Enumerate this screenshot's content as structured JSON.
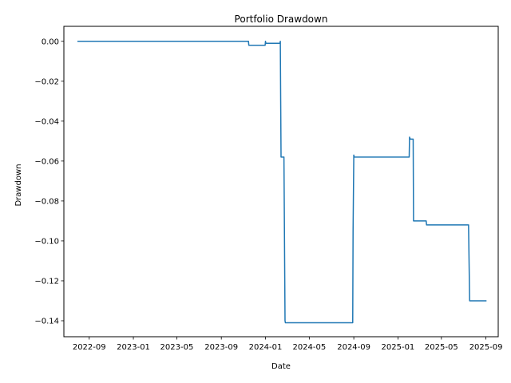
{
  "chart_data": {
    "type": "line",
    "title": "Portfolio Drawdown",
    "xlabel": "Date",
    "ylabel": "Drawdown",
    "xlim": [
      "2022-06-23",
      "2025-10-05"
    ],
    "ylim": [
      -0.148,
      0.0075
    ],
    "grid": false,
    "legend": "none",
    "x_ticks": [
      "2022-09-01",
      "2023-01-01",
      "2023-05-01",
      "2023-09-01",
      "2024-01-01",
      "2024-05-01",
      "2024-09-01",
      "2025-01-01",
      "2025-05-01",
      "2025-09-01"
    ],
    "x_tick_labels": [
      "2022-09",
      "2023-01",
      "2023-05",
      "2023-09",
      "2024-01",
      "2024-05",
      "2024-09",
      "2025-01",
      "2025-05",
      "2025-09"
    ],
    "y_ticks": [
      0.0,
      -0.02,
      -0.04,
      -0.06,
      -0.08,
      -0.1,
      -0.12,
      -0.14
    ],
    "y_tick_labels": [
      "0.00",
      "−0.02",
      "−0.04",
      "−0.06",
      "−0.08",
      "−0.10",
      "−0.12",
      "−0.14"
    ],
    "series": [
      {
        "color": "#1f77b4",
        "x": [
          "2022-08-01",
          "2023-11-15",
          "2023-11-16",
          "2023-12-31",
          "2024-01-01",
          "2024-01-02",
          "2024-02-10",
          "2024-02-11",
          "2024-02-12",
          "2024-02-13",
          "2024-02-14",
          "2024-02-15",
          "2024-02-16",
          "2024-02-17",
          "2024-02-18",
          "2024-02-19",
          "2024-02-20",
          "2024-02-21",
          "2024-02-24",
          "2024-02-25",
          "2024-08-29",
          "2024-08-30",
          "2024-09-01",
          "2024-09-02",
          "2025-02-01",
          "2025-02-02",
          "2025-02-04",
          "2025-02-05",
          "2025-02-12",
          "2025-02-13",
          "2025-03-20",
          "2025-03-21",
          "2025-07-15",
          "2025-07-18",
          "2025-09-01"
        ],
        "y": [
          0.0,
          0.0,
          -0.002,
          -0.002,
          0.0,
          -0.001,
          -0.001,
          0.0,
          -0.03,
          -0.058,
          -0.058,
          -0.058,
          -0.058,
          -0.058,
          -0.058,
          -0.058,
          -0.058,
          -0.058,
          -0.14,
          -0.141,
          -0.141,
          -0.095,
          -0.057,
          -0.058,
          -0.058,
          -0.048,
          -0.049,
          -0.049,
          -0.049,
          -0.09,
          -0.09,
          -0.092,
          -0.092,
          -0.13,
          -0.13
        ]
      }
    ]
  }
}
